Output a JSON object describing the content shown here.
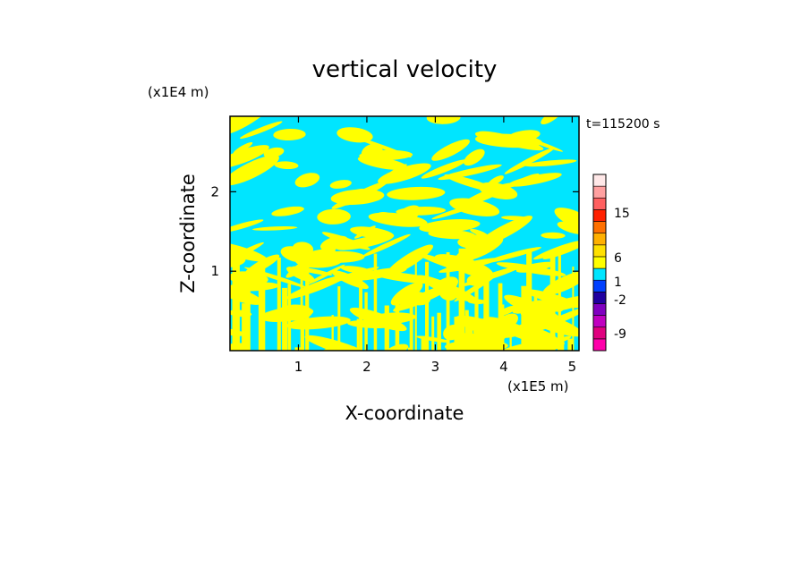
{
  "chart_data": {
    "type": "heatmap",
    "title": "vertical velocity",
    "xlabel": "X-coordinate",
    "ylabel": "Z-coordinate",
    "x_unit": "(x1E5 m)",
    "y_unit": "(x1E4 m)",
    "time_label": "t=115200 s",
    "x_ticks": [
      1,
      2,
      3,
      4,
      5
    ],
    "y_ticks": [
      1,
      2
    ],
    "x_tick_labels": [
      "1",
      "2",
      "3",
      "4",
      "5"
    ],
    "y_tick_labels": [
      "1",
      "2"
    ],
    "xlim": [
      0,
      5.1
    ],
    "ylim": [
      0,
      2.95
    ],
    "field_colors": [
      "#ffff00",
      "#00e5ff"
    ],
    "colorbar": {
      "levels": [
        "-9",
        "-2",
        "1",
        "6",
        "15"
      ],
      "colors": [
        "#ff00aa",
        "#e0007f",
        "#c000c0",
        "#8000c0",
        "#2000a0",
        "#0040ff",
        "#00e5ff",
        "#ffff00",
        "#ffe000",
        "#ffb000",
        "#ff7000",
        "#ff2000",
        "#ff6060",
        "#ffa0a0",
        "#ffe8e8"
      ]
    }
  }
}
